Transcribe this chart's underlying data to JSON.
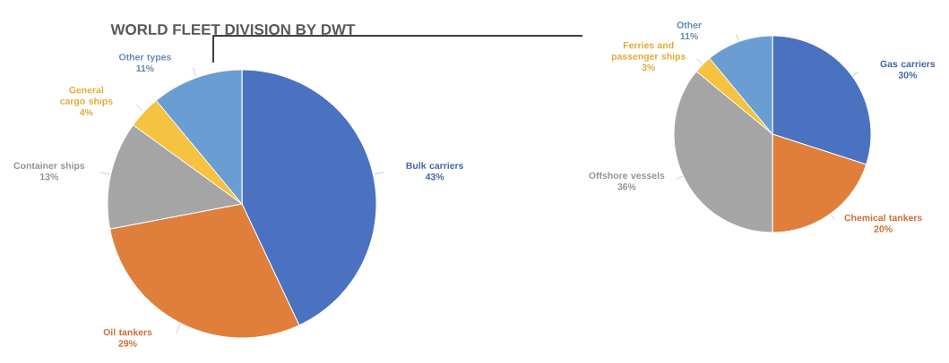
{
  "chart_data": [
    {
      "type": "pie",
      "title": "WORLD FLEET DIVISION BY DWT",
      "categories": [
        "Bulk carriers",
        "Oil tankers",
        "Container ships",
        "General cargo ships",
        "Other types"
      ],
      "values": [
        43,
        29,
        13,
        4,
        11
      ],
      "colors": [
        "#4a72c0",
        "#e07f3c",
        "#a5a5a5",
        "#f5c242",
        "#6a9ed3"
      ],
      "value_labels": [
        "43%",
        "29%",
        "13%",
        "4%",
        "11%"
      ]
    },
    {
      "type": "pie",
      "categories": [
        "Gas carriers",
        "Chemical tankers",
        "Offshore vessels",
        "Ferries and passenger ships",
        "Other"
      ],
      "values": [
        30,
        20,
        36,
        3,
        11
      ],
      "colors": [
        "#4a72c0",
        "#e07f3c",
        "#a5a5a5",
        "#f5c242",
        "#6a9ed3"
      ],
      "value_labels": [
        "30%",
        "20%",
        "36%",
        "3%",
        "11%"
      ]
    }
  ]
}
